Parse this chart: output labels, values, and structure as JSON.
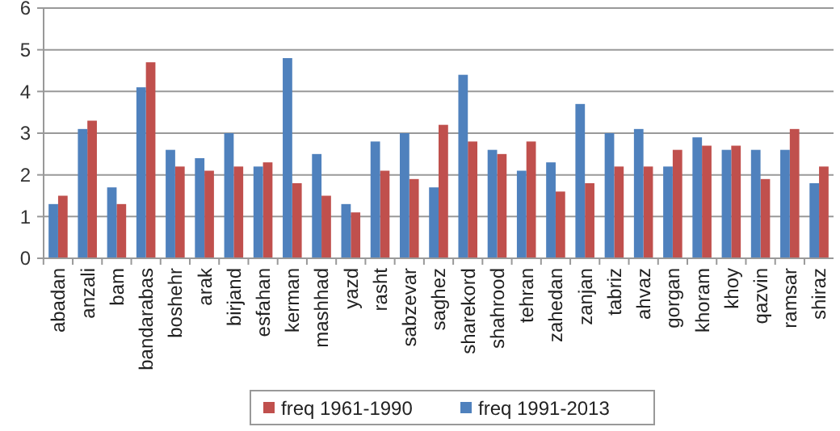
{
  "chart_data": {
    "type": "bar",
    "categories": [
      "abadan",
      "anzali",
      "bam",
      "bandarabas",
      "boshehr",
      "arak",
      "birjand",
      "esfahan",
      "kerman",
      "mashhad",
      "yazd",
      "rasht",
      "sabzevar",
      "saghez",
      "sharekord",
      "shahrood",
      "tehran",
      "zahedan",
      "zanjan",
      "tabriz",
      "ahvaz",
      "gorgan",
      "khoram",
      "khoy",
      "qazvin",
      "ramsar",
      "shiraz"
    ],
    "series": [
      {
        "name": "freq 1961-1990",
        "color": "#c0504d",
        "values": [
          1.5,
          3.3,
          1.3,
          4.7,
          2.2,
          2.1,
          2.2,
          2.3,
          1.8,
          1.5,
          1.1,
          2.1,
          1.9,
          3.2,
          2.8,
          2.5,
          2.8,
          1.6,
          1.8,
          2.2,
          2.2,
          2.6,
          2.7,
          2.7,
          1.9,
          3.1,
          2.2
        ]
      },
      {
        "name": "freq 1991-2013",
        "color": "#4f81bd",
        "values": [
          1.3,
          3.1,
          1.7,
          4.1,
          2.6,
          2.4,
          3.0,
          2.2,
          4.8,
          2.5,
          1.3,
          2.8,
          3.0,
          1.7,
          4.4,
          2.6,
          2.1,
          2.3,
          3.7,
          3.0,
          3.1,
          2.2,
          2.9,
          2.6,
          2.6,
          2.6,
          1.8
        ]
      }
    ],
    "ylim": [
      0,
      6
    ],
    "yticks": [
      0,
      1,
      2,
      3,
      4,
      5,
      6
    ],
    "grid": "y",
    "legend": "bottom"
  }
}
